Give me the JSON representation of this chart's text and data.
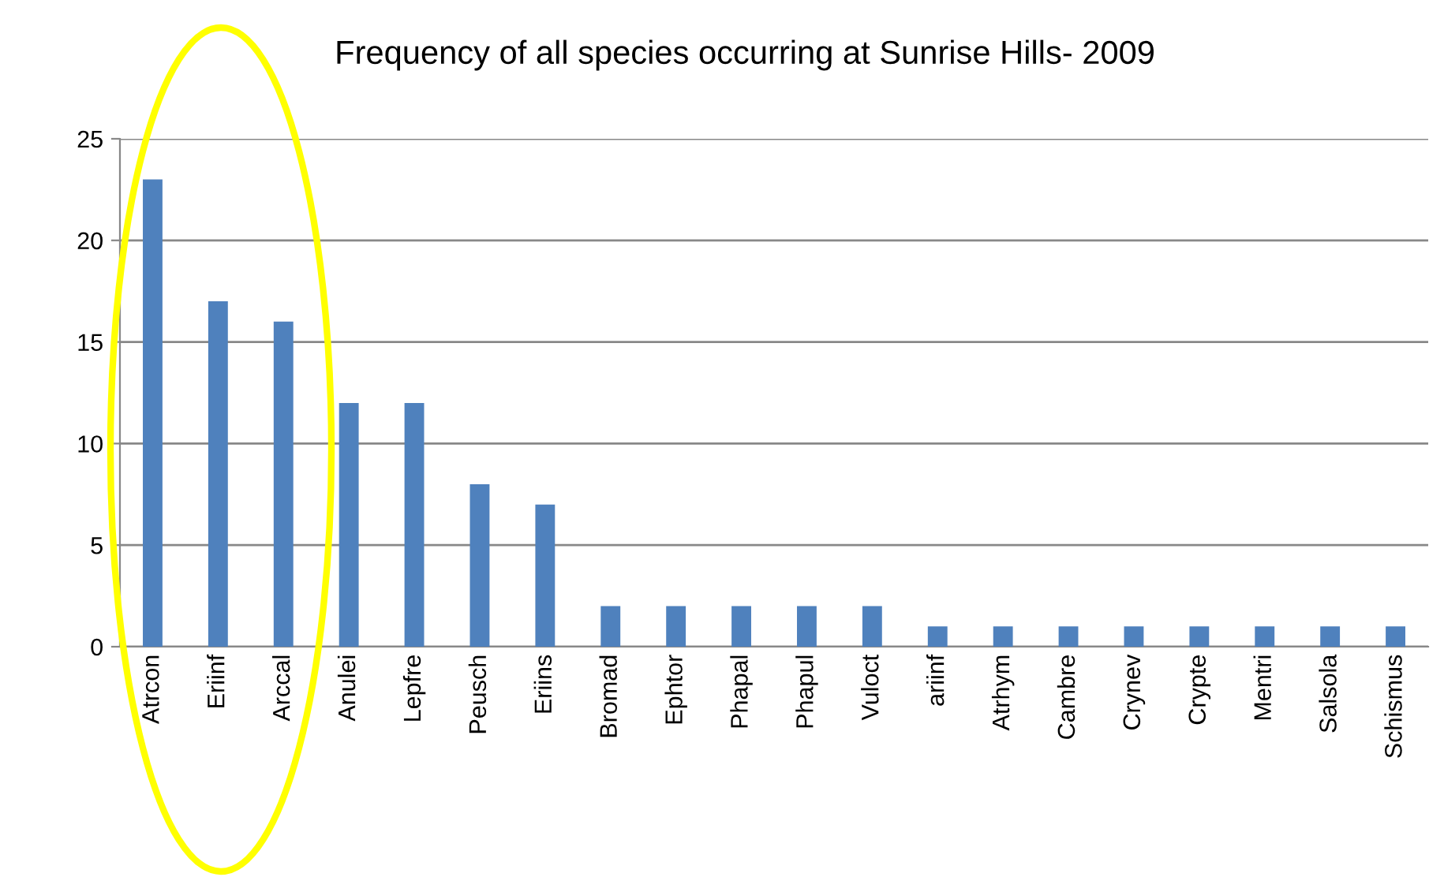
{
  "chart_data": {
    "type": "bar",
    "title": "Frequency of all species occurring at Sunrise Hills- 2009",
    "categories": [
      "Atrcon",
      "Eriinf",
      "Arccal",
      "Anulei",
      "Lepfre",
      "Peusch",
      "Eriins",
      "Bromad",
      "Ephtor",
      "Phapal",
      "Phapul",
      "Vuloct",
      "ariinf",
      "Atrhym",
      "Cambre",
      "Crynev",
      "Crypte",
      "Mentri",
      "Salsola",
      "Schismus"
    ],
    "values": [
      23,
      17,
      16,
      12,
      12,
      8,
      7,
      2,
      2,
      2,
      2,
      2,
      1,
      1,
      1,
      1,
      1,
      1,
      1,
      1
    ],
    "color": "#4f81bd",
    "ylim": [
      0,
      25
    ],
    "yticks": [
      0,
      5,
      10,
      15,
      20,
      25
    ],
    "grid": "y",
    "legend": false
  }
}
